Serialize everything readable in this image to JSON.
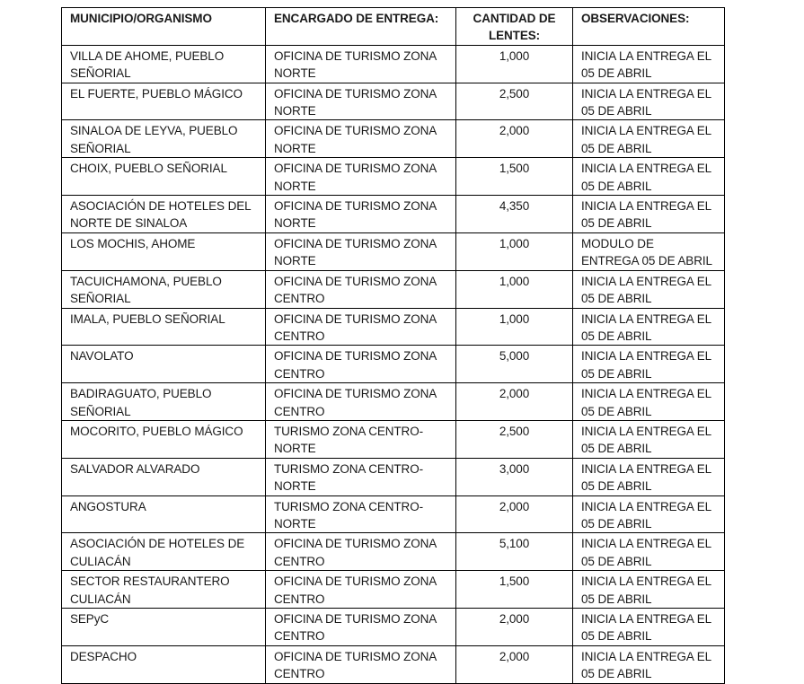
{
  "colors": {
    "background": "#ffffff",
    "border": "#000000",
    "text": "#1a1a1a"
  },
  "table": {
    "columns": [
      {
        "key": "municipio",
        "label": "MUNICIPIO/ORGANISMO"
      },
      {
        "key": "encargado",
        "label": "ENCARGADO DE ENTREGA:"
      },
      {
        "key": "cantidad",
        "label": "CANTIDAD DE\nLENTES:"
      },
      {
        "key": "observaciones",
        "label": "OBSERVACIONES:"
      }
    ],
    "rows": [
      {
        "municipio": "VILLA DE AHOME, PUEBLO\nSEÑORIAL",
        "encargado": "OFICINA DE TURISMO ZONA\nNORTE",
        "cantidad": "1,000",
        "observaciones": "INICIA LA ENTREGA EL\n05 DE ABRIL"
      },
      {
        "municipio": "EL FUERTE, PUEBLO MÁGICO",
        "encargado": "OFICINA DE TURISMO ZONA\nNORTE",
        "cantidad": "2,500",
        "observaciones": "INICIA LA ENTREGA EL\n05 DE ABRIL"
      },
      {
        "municipio": "SINALOA DE LEYVA, PUEBLO\nSEÑORIAL",
        "encargado": "OFICINA DE TURISMO ZONA\nNORTE",
        "cantidad": "2,000",
        "observaciones": "INICIA LA ENTREGA EL\n05 DE ABRIL"
      },
      {
        "municipio": "CHOIX, PUEBLO SEÑORIAL",
        "encargado": "OFICINA DE TURISMO ZONA\nNORTE",
        "cantidad": "1,500",
        "observaciones": "INICIA LA ENTREGA EL\n05 DE ABRIL"
      },
      {
        "municipio": "ASOCIACIÓN DE HOTELES DEL\nNORTE DE SINALOA",
        "encargado": "OFICINA DE TURISMO ZONA\nNORTE",
        "cantidad": "4,350",
        "observaciones": "INICIA LA ENTREGA EL\n05 DE ABRIL"
      },
      {
        "municipio": "LOS MOCHIS, AHOME",
        "encargado": "OFICINA DE TURISMO ZONA\nNORTE",
        "cantidad": "1,000",
        "observaciones": "MODULO DE\nENTREGA 05 DE ABRIL"
      },
      {
        "municipio": "TACUICHAMONA, PUEBLO\nSEÑORIAL",
        "encargado": "OFICINA DE TURISMO ZONA\nCENTRO",
        "cantidad": "1,000",
        "observaciones": "INICIA LA ENTREGA EL\n05 DE ABRIL"
      },
      {
        "municipio": "IMALA, PUEBLO SEÑORIAL",
        "encargado": "OFICINA DE TURISMO ZONA\nCENTRO",
        "cantidad": "1,000",
        "observaciones": "INICIA LA ENTREGA EL\n05 DE ABRIL"
      },
      {
        "municipio": "NAVOLATO",
        "encargado": "OFICINA DE TURISMO ZONA\nCENTRO",
        "cantidad": "5,000",
        "observaciones": "INICIA LA ENTREGA EL\n05 DE ABRIL"
      },
      {
        "municipio": "BADIRAGUATO, PUEBLO\nSEÑORIAL",
        "encargado": "OFICINA DE TURISMO ZONA\nCENTRO",
        "cantidad": "2,000",
        "observaciones": "INICIA LA ENTREGA EL\n05 DE ABRIL"
      },
      {
        "municipio": "MOCORITO, PUEBLO MÁGICO",
        "encargado": "TURISMO ZONA CENTRO-\nNORTE",
        "cantidad": "2,500",
        "observaciones": "INICIA LA ENTREGA EL\n05 DE ABRIL"
      },
      {
        "municipio": "SALVADOR ALVARADO",
        "encargado": "TURISMO ZONA CENTRO-\nNORTE",
        "cantidad": "3,000",
        "observaciones": "INICIA LA ENTREGA EL\n05 DE ABRIL"
      },
      {
        "municipio": "ANGOSTURA",
        "encargado": "TURISMO ZONA CENTRO-\nNORTE",
        "cantidad": "2,000",
        "observaciones": "INICIA LA ENTREGA EL\n05 DE ABRIL"
      },
      {
        "municipio": "ASOCIACIÓN DE HOTELES DE\nCULIACÁN",
        "encargado": "OFICINA DE TURISMO ZONA\nCENTRO",
        "cantidad": "5,100",
        "observaciones": "INICIA LA ENTREGA EL\n05 DE ABRIL"
      },
      {
        "municipio": "SECTOR RESTAURANTERO\nCULIACÁN",
        "encargado": "OFICINA DE TURISMO ZONA\nCENTRO",
        "cantidad": "1,500",
        "observaciones": "INICIA LA ENTREGA EL\n05 DE ABRIL"
      },
      {
        "municipio": "SEPyC",
        "encargado": "OFICINA DE TURISMO ZONA\nCENTRO",
        "cantidad": "2,000",
        "observaciones": "INICIA LA ENTREGA EL\n05 DE ABRIL"
      },
      {
        "municipio": "DESPACHO",
        "encargado": "OFICINA DE TURISMO ZONA\nCENTRO",
        "cantidad": "2,000",
        "observaciones": "INICIA LA ENTREGA EL\n05 DE ABRIL"
      }
    ]
  }
}
